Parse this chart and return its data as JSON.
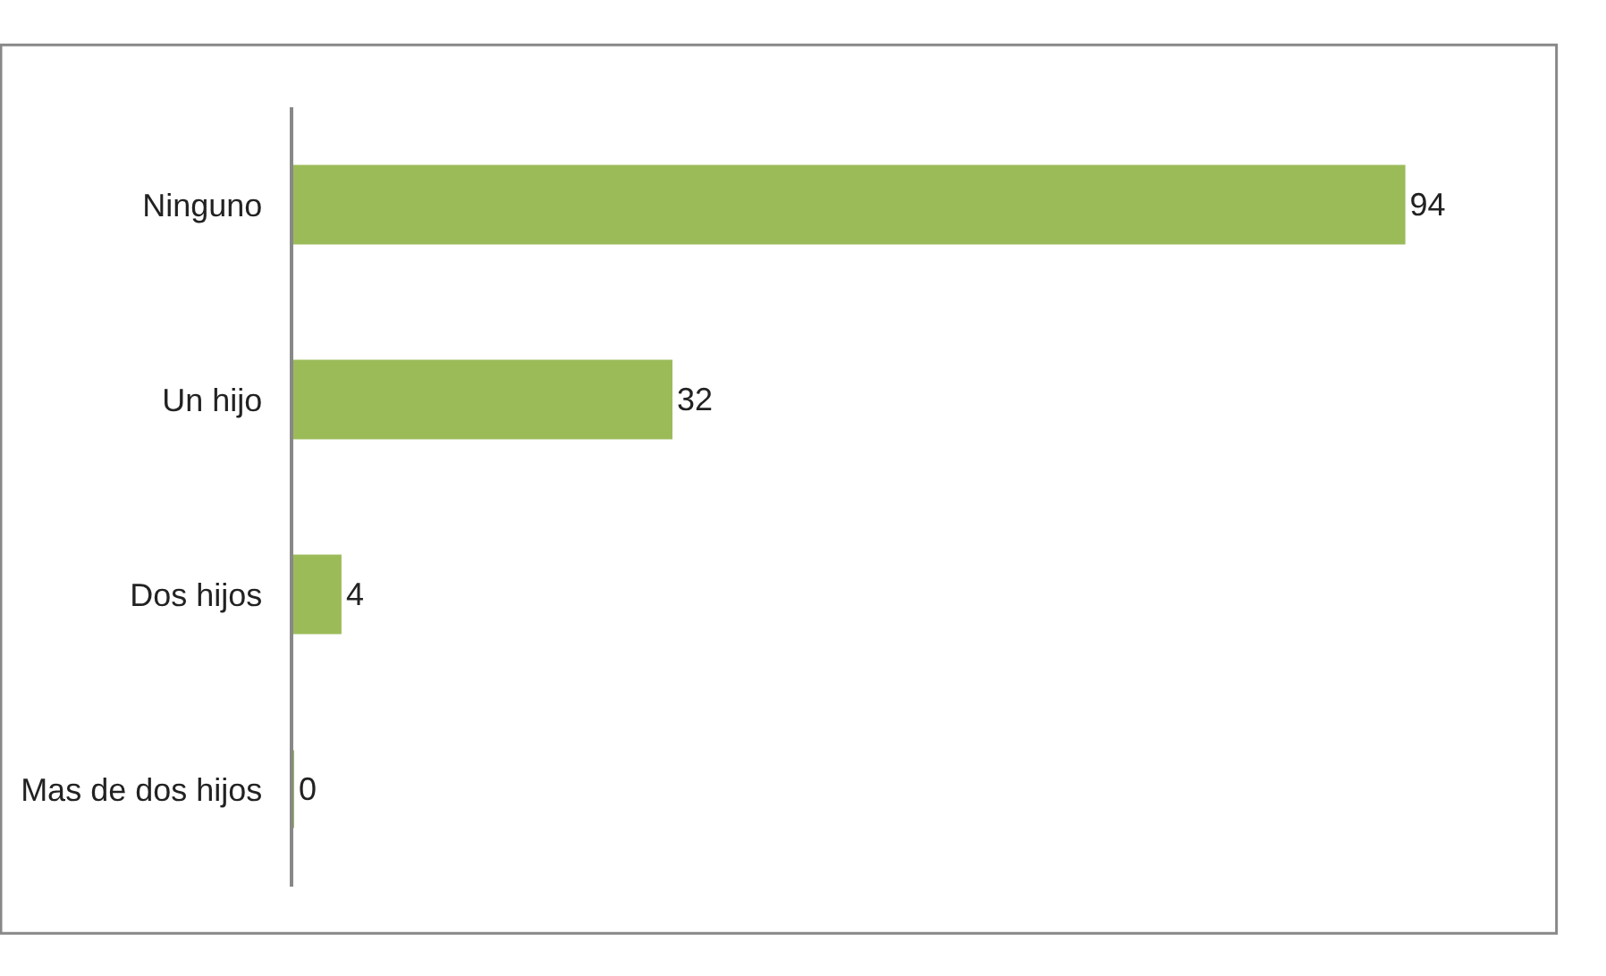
{
  "chart_data": {
    "type": "bar",
    "orientation": "horizontal",
    "categories": [
      "Ninguno",
      "Un hijo",
      "Dos hijos",
      "Mas de dos hijos"
    ],
    "values": [
      94,
      32,
      4,
      0
    ],
    "color": "#9bbb59",
    "data_labels": true,
    "legend": false
  }
}
